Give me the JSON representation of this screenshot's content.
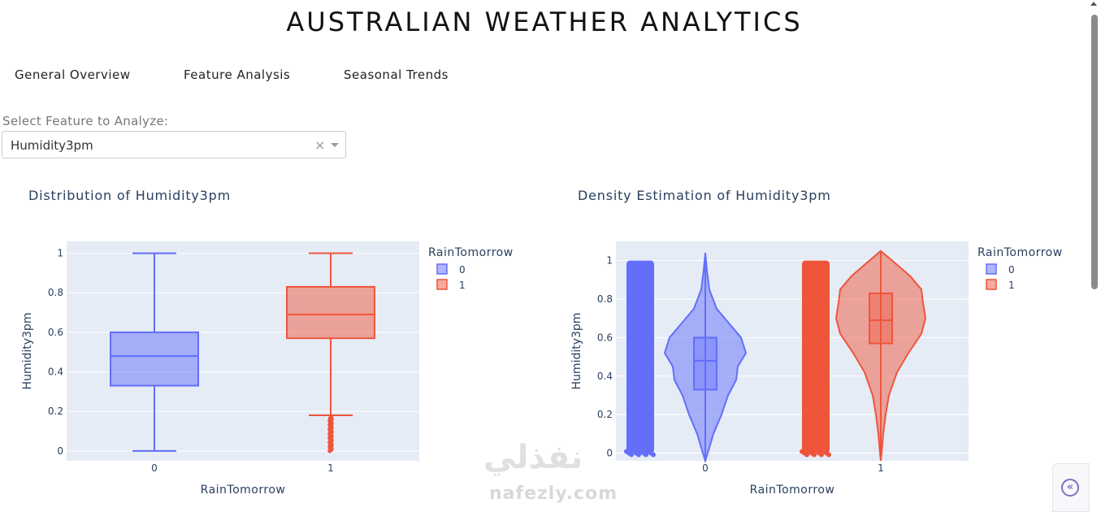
{
  "app": {
    "title": "AUSTRALIAN WEATHER ANALYTICS"
  },
  "tabs": [
    {
      "label": "General Overview"
    },
    {
      "label": "Feature Analysis"
    },
    {
      "label": "Seasonal Trends"
    }
  ],
  "feature_select": {
    "label": "Select Feature to Analyze:",
    "value": "Humidity3pm",
    "clear_glyph": "×"
  },
  "colors": {
    "class0": "#636efa",
    "class1": "#ef553b",
    "plot_bg": "#e5ecf6",
    "grid": "#ffffff"
  },
  "charts": {
    "box": {
      "title": "Distribution of Humidity3pm"
    },
    "violin": {
      "title": "Density Estimation of Humidity3pm"
    }
  },
  "watermark": {
    "text": "نفذلي",
    "sub": "nafezly.com"
  },
  "chart_data": [
    {
      "type": "box",
      "title": "Distribution of Humidity3pm",
      "xlabel": "RainTomorrow",
      "ylabel": "Humidity3pm",
      "categories": [
        "0",
        "1"
      ],
      "yticks": [
        "0",
        "0.2",
        "0.4",
        "0.6",
        "0.8",
        "1"
      ],
      "ylim": [
        -0.05,
        1.06
      ],
      "legend": {
        "title": "RainTomorrow",
        "entries": [
          "0",
          "1"
        ],
        "placement": "right"
      },
      "series": [
        {
          "name": "0",
          "min": 0,
          "q1": 0.33,
          "median": 0.48,
          "q3": 0.6,
          "max": 1.0
        },
        {
          "name": "1",
          "min": 0.18,
          "q1": 0.57,
          "median": 0.69,
          "q3": 0.83,
          "max": 1.0,
          "outliers_range": [
            0.0,
            0.17
          ]
        }
      ]
    },
    {
      "type": "violin",
      "title": "Density Estimation of Humidity3pm",
      "xlabel": "RainTomorrow",
      "ylabel": "Humidity3pm",
      "categories": [
        "0",
        "1"
      ],
      "yticks": [
        "0",
        "0.2",
        "0.4",
        "0.6",
        "0.8",
        "1"
      ],
      "ylim": [
        -0.04,
        1.1
      ],
      "legend": {
        "title": "RainTomorrow",
        "entries": [
          "0",
          "1"
        ],
        "placement": "right"
      },
      "points": "all",
      "series": [
        {
          "name": "0",
          "min": -0.04,
          "q1": 0.33,
          "median": 0.48,
          "q3": 0.6,
          "max": 1.04,
          "points_range": [
            0.0,
            1.0
          ]
        },
        {
          "name": "1",
          "min": -0.04,
          "q1": 0.57,
          "median": 0.69,
          "q3": 0.83,
          "max": 1.05,
          "points_range": [
            0.0,
            1.0
          ]
        }
      ]
    }
  ]
}
